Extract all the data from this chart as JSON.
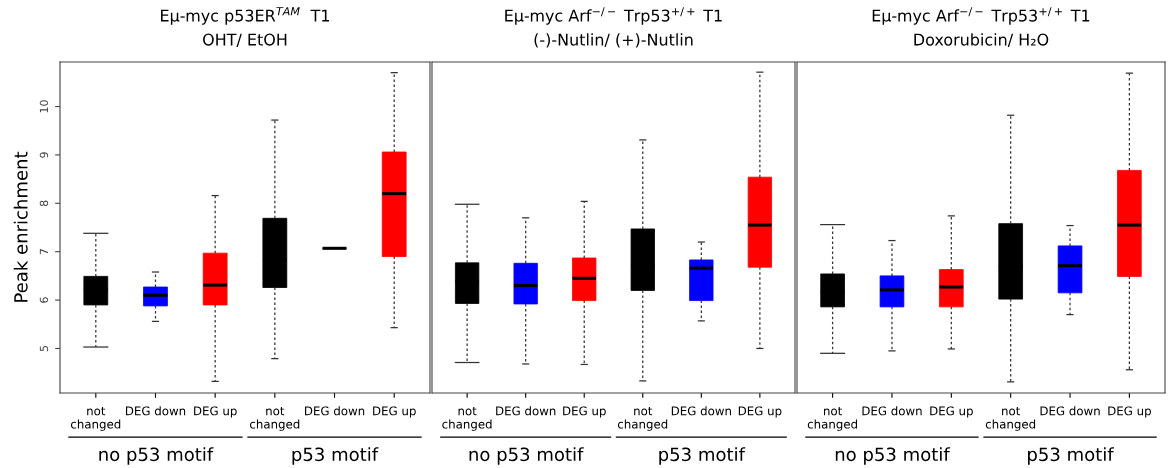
{
  "chart_data": [
    {
      "type": "box",
      "title": "Eμ-myc p53ER$^{TAM}$  T1",
      "subtitle": "OHT/ EtOH",
      "ylabel": "Peak enrichment",
      "categories": [
        "not\nchanged",
        "DEG down",
        "DEG up",
        "not\nchanged",
        "DEG down",
        "DEG up"
      ],
      "colors": [
        "#000000",
        "#0000ff",
        "#ff0000",
        "#000000",
        "#0000ff",
        "#ff0000"
      ],
      "boxes": [
        {
          "low": 5.03,
          "q1": 5.9,
          "median": 6.21,
          "q3": 6.49,
          "high": 7.38
        },
        {
          "low": 5.56,
          "q1": 5.88,
          "median": 6.1,
          "q3": 6.27,
          "high": 6.58
        },
        {
          "low": 4.32,
          "q1": 5.9,
          "median": 6.31,
          "q3": 6.97,
          "high": 8.16
        },
        {
          "low": 4.79,
          "q1": 6.26,
          "median": 6.83,
          "q3": 7.69,
          "high": 9.72
        },
        {
          "low": 7.07,
          "q1": 7.07,
          "median": 7.07,
          "q3": 7.07,
          "high": 7.07
        },
        {
          "low": 5.43,
          "q1": 6.9,
          "median": 8.2,
          "q3": 9.06,
          "high": 10.7
        }
      ],
      "ylim": [
        4.08,
        10.92
      ],
      "yticks": [
        5,
        6,
        7,
        8,
        9,
        10
      ],
      "annotations": [
        "no p53 motif",
        "p53 motif"
      ]
    },
    {
      "type": "box",
      "title": "Eμ-myc Arf$^{−/−}$ Trp53$^{+/+}$ T1",
      "subtitle": "(-)-Nutlin/ (+)-Nutlin",
      "categories": [
        "not\nchanged",
        "DEG down",
        "DEG up",
        "not\nchanged",
        "DEG down",
        "DEG up"
      ],
      "colors": [
        "#000000",
        "#0000ff",
        "#ff0000",
        "#000000",
        "#0000ff",
        "#ff0000"
      ],
      "boxes": [
        {
          "low": 4.71,
          "q1": 5.93,
          "median": 6.38,
          "q3": 6.77,
          "high": 7.98
        },
        {
          "low": 4.68,
          "q1": 5.92,
          "median": 6.3,
          "q3": 6.76,
          "high": 7.7
        },
        {
          "low": 4.67,
          "q1": 5.99,
          "median": 6.45,
          "q3": 6.87,
          "high": 8.04
        },
        {
          "low": 4.33,
          "q1": 6.2,
          "median": 6.71,
          "q3": 7.47,
          "high": 9.31
        },
        {
          "low": 5.57,
          "q1": 5.99,
          "median": 6.66,
          "q3": 6.83,
          "high": 7.2
        },
        {
          "low": 5.0,
          "q1": 6.68,
          "median": 7.55,
          "q3": 8.54,
          "high": 10.71
        }
      ],
      "ylim": [
        4.08,
        10.92
      ],
      "yticks": [
        5,
        6,
        7,
        8,
        9,
        10
      ],
      "tick_labels": "x",
      "annotations": [
        "no p53 motif",
        "p53 motif"
      ]
    },
    {
      "type": "box",
      "title": "Eμ-myc Arf$^{−/−}$ Trp53$^{+/+}$ T1",
      "subtitle": "Doxorubicin/ H₂O",
      "categories": [
        "not\nchanged",
        "DEG down",
        "DEG up",
        "not\nchanged",
        "DEG down",
        "DEG up"
      ],
      "colors": [
        "#000000",
        "#0000ff",
        "#ff0000",
        "#000000",
        "#0000ff",
        "#ff0000"
      ],
      "boxes": [
        {
          "low": 4.9,
          "q1": 5.86,
          "median": 6.18,
          "q3": 6.54,
          "high": 7.56
        },
        {
          "low": 4.95,
          "q1": 5.86,
          "median": 6.21,
          "q3": 6.5,
          "high": 7.23
        },
        {
          "low": 4.99,
          "q1": 5.86,
          "median": 6.27,
          "q3": 6.63,
          "high": 7.74
        },
        {
          "low": 4.31,
          "q1": 6.02,
          "median": 6.69,
          "q3": 7.58,
          "high": 9.82
        },
        {
          "low": 5.7,
          "q1": 6.15,
          "median": 6.71,
          "q3": 7.12,
          "high": 7.54
        },
        {
          "low": 4.56,
          "q1": 6.49,
          "median": 7.55,
          "q3": 8.68,
          "high": 10.69
        }
      ],
      "ylim": [
        4.08,
        10.92
      ],
      "yticks": [
        5,
        6,
        7,
        8,
        9,
        10
      ],
      "tick_labels": "x",
      "annotations": [
        "no p53 motif",
        "p53 motif"
      ]
    }
  ]
}
